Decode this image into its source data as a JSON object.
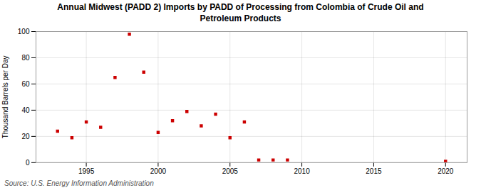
{
  "chart_data": {
    "type": "scatter",
    "title": "Annual Midwest (PADD 2) Imports by PADD of Processing from Colombia of Crude Oil and\nPetroleum Products",
    "ylabel": "Thousand Barrels per Day",
    "source": "Source: U.S. Energy Information Administration",
    "x": [
      1993,
      1994,
      1995,
      1996,
      1997,
      1998,
      1999,
      2000,
      2001,
      2002,
      2003,
      2004,
      2005,
      2006,
      2007,
      2008,
      2009,
      2020
    ],
    "values": [
      24,
      19,
      31,
      27,
      65,
      98,
      69,
      23,
      32,
      39,
      28,
      37,
      19,
      31,
      2,
      2,
      2,
      1
    ],
    "color": "#cc0000",
    "marker": "square",
    "xlim": [
      1991.5,
      2021.5
    ],
    "ylim": [
      0,
      100
    ],
    "xticks": [
      1995,
      2000,
      2005,
      2010,
      2015,
      2020
    ],
    "yticks": [
      0,
      20,
      40,
      60,
      80,
      100
    ],
    "grid": true
  }
}
